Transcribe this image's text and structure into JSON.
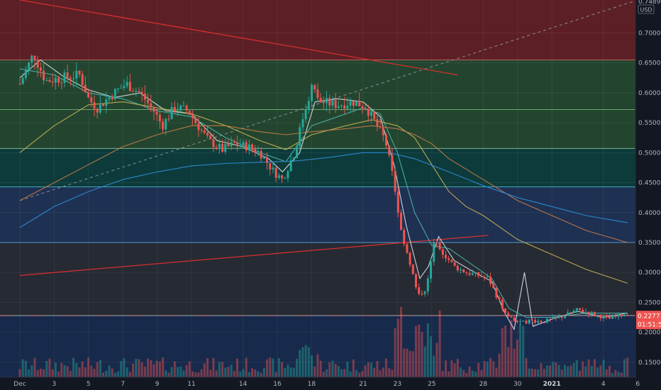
{
  "currency": "USD",
  "colors": {
    "up": "#26a69a",
    "down": "#ef5350",
    "background": "#131722",
    "fib_red": "#5c1f25",
    "fib_green": "#23452f",
    "fib_teal": "#0d3b3b",
    "fib_blue": "#1e3152",
    "fib_gray": "#262a33",
    "fib_navy": "#182a4b",
    "ema_white": "#e0e3eb",
    "ema_teal": "#4db6ac",
    "ema_yellow": "#c9b458",
    "ema_orange": "#c87c4a",
    "ema_blue": "#2f8fdb",
    "trend_red": "#d32f2f",
    "dashed": "#8a8f99",
    "price_tag": "#ef5350"
  },
  "price_tag": {
    "price": "0.22771",
    "countdown": "01:51:56"
  },
  "chart_data": {
    "type": "candlestick",
    "ylim": [
      0.125,
      0.755
    ],
    "y_ticks": [
      0.15,
      0.2,
      0.25,
      0.3,
      0.35,
      0.4,
      0.45,
      0.5,
      0.55,
      0.6,
      0.65,
      0.7
    ],
    "y_tick_labels": [
      "0.15000",
      "0.20000",
      "0.25000",
      "0.30000",
      "0.35000",
      "0.40000",
      "0.45000",
      "0.50000",
      "0.55000",
      "0.60000",
      "0.65000",
      "0.70000"
    ],
    "top_partial_label": "0.74890",
    "x_ticks": [
      {
        "label": "Dec",
        "day": 1,
        "bold": false
      },
      {
        "label": "3",
        "day": 3,
        "bold": false
      },
      {
        "label": "5",
        "day": 5,
        "bold": false
      },
      {
        "label": "7",
        "day": 7,
        "bold": false
      },
      {
        "label": "9",
        "day": 9,
        "bold": false
      },
      {
        "label": "11",
        "day": 11,
        "bold": false
      },
      {
        "label": "14",
        "day": 14,
        "bold": false
      },
      {
        "label": "16",
        "day": 16,
        "bold": false
      },
      {
        "label": "18",
        "day": 18,
        "bold": false
      },
      {
        "label": "21",
        "day": 21,
        "bold": false
      },
      {
        "label": "23",
        "day": 23,
        "bold": false
      },
      {
        "label": "25",
        "day": 25,
        "bold": false
      },
      {
        "label": "28",
        "day": 28,
        "bold": false
      },
      {
        "label": "30",
        "day": 30,
        "bold": false
      },
      {
        "label": "2021",
        "day": 32,
        "bold": true
      },
      {
        "label": "4",
        "day": 35,
        "bold": false
      },
      {
        "label": "6",
        "day": 37,
        "bold": false
      }
    ],
    "fib_levels": [
      0.655,
      0.572,
      0.507,
      0.443,
      0.35,
      0.228
    ],
    "price_path": [
      [
        1,
        0.615
      ],
      [
        1.8,
        0.665
      ],
      [
        2.5,
        0.62
      ],
      [
        3.5,
        0.625
      ],
      [
        4.5,
        0.63
      ],
      [
        5,
        0.59
      ],
      [
        5.5,
        0.575
      ],
      [
        6.5,
        0.6
      ],
      [
        7.2,
        0.615
      ],
      [
        8,
        0.6
      ],
      [
        8.8,
        0.57
      ],
      [
        9.3,
        0.545
      ],
      [
        10,
        0.575
      ],
      [
        10.8,
        0.57
      ],
      [
        11.5,
        0.54
      ],
      [
        12,
        0.52
      ],
      [
        12.8,
        0.505
      ],
      [
        13.5,
        0.515
      ],
      [
        14.3,
        0.51
      ],
      [
        15,
        0.5
      ],
      [
        15.8,
        0.468
      ],
      [
        16.3,
        0.455
      ],
      [
        17,
        0.5
      ],
      [
        17.5,
        0.56
      ],
      [
        18,
        0.61
      ],
      [
        18.5,
        0.585
      ],
      [
        19.5,
        0.58
      ],
      [
        20.5,
        0.585
      ],
      [
        21.2,
        0.575
      ],
      [
        21.8,
        0.545
      ],
      [
        22.3,
        0.52
      ],
      [
        22.8,
        0.45
      ],
      [
        23.2,
        0.37
      ],
      [
        23.7,
        0.32
      ],
      [
        24.2,
        0.26
      ],
      [
        24.7,
        0.275
      ],
      [
        25.2,
        0.36
      ],
      [
        25.6,
        0.335
      ],
      [
        26.3,
        0.31
      ],
      [
        27,
        0.3
      ],
      [
        27.7,
        0.295
      ],
      [
        28.3,
        0.29
      ],
      [
        28.8,
        0.26
      ],
      [
        29.3,
        0.23
      ],
      [
        29.8,
        0.22
      ],
      [
        30.2,
        0.215
      ],
      [
        30.7,
        0.22
      ],
      [
        31.5,
        0.218
      ],
      [
        32.5,
        0.225
      ],
      [
        33.5,
        0.238
      ],
      [
        34.5,
        0.23
      ],
      [
        35.3,
        0.222
      ],
      [
        36,
        0.228
      ],
      [
        36.4,
        0.232
      ]
    ],
    "moving_averages": [
      {
        "color_key": "ema_white",
        "points": [
          [
            1,
            0.625
          ],
          [
            2.2,
            0.655
          ],
          [
            3.5,
            0.628
          ],
          [
            5,
            0.605
          ],
          [
            6.5,
            0.592
          ],
          [
            8,
            0.6
          ],
          [
            9.5,
            0.57
          ],
          [
            11,
            0.565
          ],
          [
            12.5,
            0.52
          ],
          [
            14,
            0.51
          ],
          [
            15.5,
            0.49
          ],
          [
            16.3,
            0.468
          ],
          [
            17.3,
            0.5
          ],
          [
            18.2,
            0.585
          ],
          [
            19.5,
            0.59
          ],
          [
            21,
            0.585
          ],
          [
            22,
            0.56
          ],
          [
            22.8,
            0.48
          ],
          [
            23.5,
            0.38
          ],
          [
            24.3,
            0.29
          ],
          [
            24.8,
            0.31
          ],
          [
            25.4,
            0.36
          ],
          [
            26.3,
            0.32
          ],
          [
            27.5,
            0.3
          ],
          [
            28.5,
            0.285
          ],
          [
            29.2,
            0.235
          ],
          [
            29.8,
            0.205
          ],
          [
            30.4,
            0.3
          ],
          [
            30.9,
            0.21
          ],
          [
            32,
            0.222
          ],
          [
            33.5,
            0.235
          ],
          [
            35,
            0.225
          ],
          [
            36.4,
            0.232
          ]
        ]
      },
      {
        "color_key": "ema_teal",
        "points": [
          [
            1,
            0.64
          ],
          [
            3,
            0.63
          ],
          [
            5,
            0.6
          ],
          [
            7,
            0.59
          ],
          [
            9,
            0.57
          ],
          [
            11,
            0.56
          ],
          [
            13,
            0.525
          ],
          [
            15,
            0.5
          ],
          [
            16.5,
            0.485
          ],
          [
            18,
            0.545
          ],
          [
            19.5,
            0.56
          ],
          [
            21,
            0.575
          ],
          [
            22,
            0.565
          ],
          [
            23,
            0.5
          ],
          [
            24,
            0.4
          ],
          [
            25,
            0.345
          ],
          [
            26,
            0.34
          ],
          [
            27,
            0.32
          ],
          [
            28.5,
            0.29
          ],
          [
            29.5,
            0.24
          ],
          [
            30.5,
            0.225
          ],
          [
            32,
            0.225
          ],
          [
            34,
            0.232
          ],
          [
            36.4,
            0.232
          ]
        ]
      },
      {
        "color_key": "ema_yellow",
        "points": [
          [
            1,
            0.5
          ],
          [
            3,
            0.545
          ],
          [
            5,
            0.58
          ],
          [
            7,
            0.585
          ],
          [
            9,
            0.575
          ],
          [
            11,
            0.565
          ],
          [
            13,
            0.545
          ],
          [
            15,
            0.52
          ],
          [
            16.5,
            0.505
          ],
          [
            18,
            0.53
          ],
          [
            20,
            0.545
          ],
          [
            21.5,
            0.555
          ],
          [
            23,
            0.545
          ],
          [
            24,
            0.525
          ],
          [
            25,
            0.48
          ],
          [
            26,
            0.435
          ],
          [
            27,
            0.41
          ],
          [
            28,
            0.395
          ],
          [
            29,
            0.375
          ],
          [
            30,
            0.355
          ],
          [
            32,
            0.33
          ],
          [
            34,
            0.305
          ],
          [
            36.4,
            0.282
          ]
        ]
      },
      {
        "color_key": "ema_orange",
        "points": [
          [
            1,
            0.42
          ],
          [
            3,
            0.45
          ],
          [
            5,
            0.48
          ],
          [
            7,
            0.51
          ],
          [
            9,
            0.53
          ],
          [
            11,
            0.545
          ],
          [
            13,
            0.545
          ],
          [
            15,
            0.535
          ],
          [
            16.5,
            0.53
          ],
          [
            18,
            0.535
          ],
          [
            20,
            0.54
          ],
          [
            21.5,
            0.545
          ],
          [
            23,
            0.54
          ],
          [
            24,
            0.53
          ],
          [
            25,
            0.515
          ],
          [
            26,
            0.49
          ],
          [
            28,
            0.455
          ],
          [
            30,
            0.42
          ],
          [
            32,
            0.395
          ],
          [
            34,
            0.37
          ],
          [
            36.4,
            0.35
          ]
        ]
      },
      {
        "color_key": "ema_blue",
        "points": [
          [
            1,
            0.375
          ],
          [
            3,
            0.41
          ],
          [
            5,
            0.435
          ],
          [
            7,
            0.455
          ],
          [
            9,
            0.468
          ],
          [
            11,
            0.478
          ],
          [
            13,
            0.482
          ],
          [
            15,
            0.484
          ],
          [
            17,
            0.486
          ],
          [
            19,
            0.492
          ],
          [
            21,
            0.5
          ],
          [
            22.5,
            0.5
          ],
          [
            24,
            0.49
          ],
          [
            26,
            0.468
          ],
          [
            28,
            0.445
          ],
          [
            30,
            0.425
          ],
          [
            32,
            0.41
          ],
          [
            34,
            0.395
          ],
          [
            36.4,
            0.383
          ]
        ]
      }
    ],
    "trend_lines": [
      {
        "color_key": "trend_red",
        "dashed": false,
        "from": [
          1,
          0.755
        ],
        "to": [
          26.5,
          0.63
        ]
      },
      {
        "color_key": "trend_red",
        "dashed": false,
        "from": [
          1,
          0.295
        ],
        "to": [
          28.3,
          0.362
        ]
      },
      {
        "color_key": "dashed",
        "dashed": true,
        "from": [
          1,
          0.42
        ],
        "to": [
          37,
          0.755
        ]
      }
    ]
  }
}
